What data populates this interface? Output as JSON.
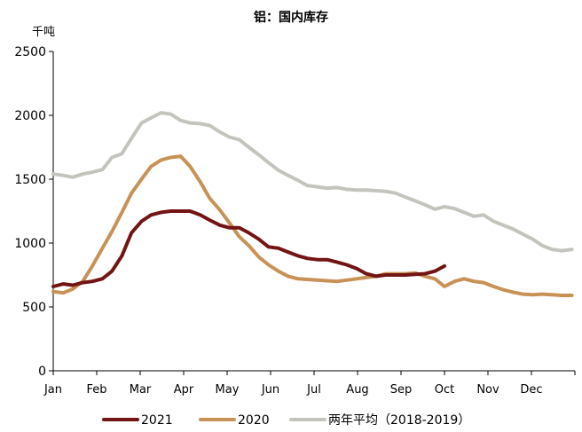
{
  "chart_data": {
    "type": "line",
    "title": "铝：国内库存",
    "unit_label": "千吨",
    "ylim": [
      0,
      2500
    ],
    "yticks": [
      0,
      500,
      1000,
      1500,
      2000,
      2500
    ],
    "xlim": [
      0,
      12
    ],
    "month_labels": [
      "Jan",
      "Feb",
      "Mar",
      "Apr",
      "May",
      "Jun",
      "Jul",
      "Aug",
      "Sep",
      "Oct",
      "Nov",
      "Dec"
    ],
    "grid": false,
    "legend_position": "bottom",
    "series": [
      {
        "name": "两年平均（2018-2019）",
        "color": "#c3c5bd",
        "x": [
          0,
          0.23,
          0.45,
          0.68,
          0.9,
          1.13,
          1.35,
          1.58,
          1.8,
          2.03,
          2.25,
          2.48,
          2.7,
          2.93,
          3.15,
          3.38,
          3.6,
          3.83,
          4.05,
          4.28,
          4.5,
          4.73,
          4.95,
          5.18,
          5.4,
          5.63,
          5.85,
          6.08,
          6.3,
          6.53,
          6.75,
          6.98,
          7.2,
          7.43,
          7.65,
          7.88,
          8.1,
          8.33,
          8.55,
          8.78,
          9.0,
          9.23,
          9.45,
          9.68,
          9.9,
          10.13,
          10.35,
          10.58,
          10.8,
          11.03,
          11.25,
          11.48,
          11.7,
          11.93
        ],
        "y": [
          1540,
          1530,
          1515,
          1540,
          1555,
          1575,
          1670,
          1700,
          1820,
          1940,
          1980,
          2020,
          2010,
          1960,
          1940,
          1935,
          1920,
          1870,
          1830,
          1810,
          1750,
          1690,
          1630,
          1570,
          1530,
          1490,
          1450,
          1440,
          1430,
          1435,
          1420,
          1415,
          1415,
          1410,
          1405,
          1390,
          1360,
          1330,
          1300,
          1265,
          1285,
          1270,
          1240,
          1210,
          1220,
          1170,
          1140,
          1110,
          1070,
          1030,
          980,
          950,
          940,
          950
        ]
      },
      {
        "name": "2020",
        "color": "#c89256",
        "x": [
          0,
          0.23,
          0.45,
          0.68,
          0.9,
          1.13,
          1.35,
          1.58,
          1.8,
          2.03,
          2.25,
          2.48,
          2.7,
          2.93,
          3.15,
          3.38,
          3.6,
          3.83,
          4.05,
          4.28,
          4.5,
          4.73,
          4.95,
          5.18,
          5.4,
          5.63,
          5.85,
          6.08,
          6.3,
          6.53,
          6.75,
          6.98,
          7.2,
          7.43,
          7.65,
          7.88,
          8.1,
          8.33,
          8.55,
          8.78,
          9.0,
          9.23,
          9.45,
          9.68,
          9.9,
          10.13,
          10.35,
          10.58,
          10.8,
          11.03,
          11.25,
          11.48,
          11.7,
          11.93
        ],
        "y": [
          620,
          610,
          640,
          700,
          820,
          960,
          1090,
          1240,
          1390,
          1500,
          1600,
          1650,
          1670,
          1680,
          1600,
          1480,
          1350,
          1260,
          1160,
          1050,
          980,
          890,
          830,
          780,
          740,
          720,
          715,
          710,
          705,
          700,
          710,
          720,
          730,
          740,
          760,
          760,
          760,
          765,
          740,
          720,
          660,
          700,
          720,
          700,
          690,
          660,
          635,
          615,
          600,
          595,
          600,
          595,
          590,
          590
        ]
      },
      {
        "name": "2021",
        "color": "#731414",
        "x": [
          0,
          0.23,
          0.45,
          0.68,
          0.9,
          1.13,
          1.35,
          1.58,
          1.8,
          2.03,
          2.25,
          2.48,
          2.7,
          2.93,
          3.15,
          3.38,
          3.6,
          3.83,
          4.05,
          4.28,
          4.5,
          4.73,
          4.95,
          5.18,
          5.4,
          5.63,
          5.85,
          6.08,
          6.3,
          6.53,
          6.75,
          6.98,
          7.2,
          7.43,
          7.65,
          7.88,
          8.1,
          8.33,
          8.55,
          8.78,
          9.0
        ],
        "y": [
          660,
          680,
          670,
          690,
          700,
          720,
          780,
          900,
          1080,
          1170,
          1220,
          1240,
          1250,
          1250,
          1250,
          1220,
          1180,
          1140,
          1120,
          1120,
          1080,
          1030,
          970,
          960,
          930,
          900,
          880,
          870,
          870,
          850,
          830,
          800,
          760,
          740,
          750,
          750,
          750,
          755,
          760,
          780,
          820
        ]
      }
    ]
  }
}
